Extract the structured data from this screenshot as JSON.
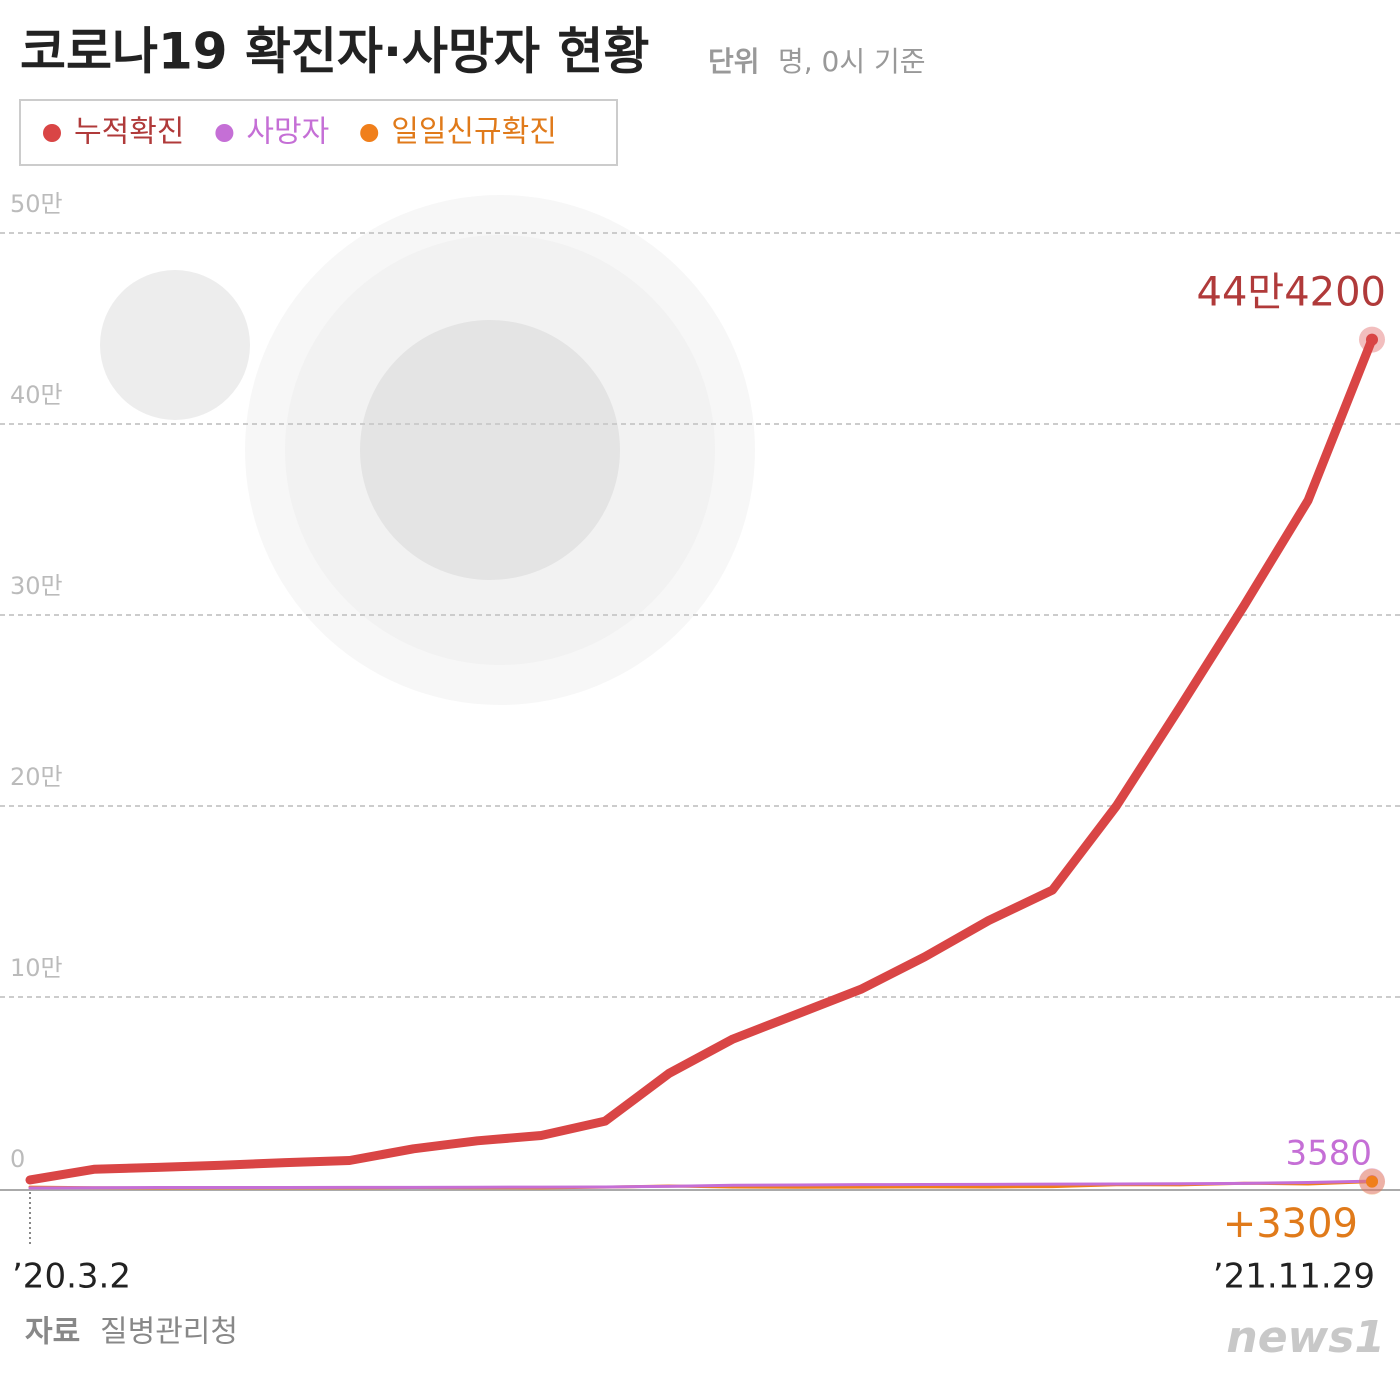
{
  "chart_data": {
    "type": "line",
    "title": "코로나19 확진자·사망자 현황",
    "unit_label": "단위",
    "unit": "명, 0시 기준",
    "source_label": "자료",
    "source": "질병관리청",
    "logo": "news1",
    "categories": [
      "’20.3.2",
      null,
      null,
      null,
      null,
      null,
      null,
      null,
      null,
      null,
      null,
      null,
      null,
      null,
      null,
      null,
      null,
      null,
      null,
      null,
      null,
      "’21.11.29"
    ],
    "series": [
      {
        "name": "누적확진",
        "color": "#d94545",
        "label_color": "#b03a3a",
        "values": [
          4212,
          9800,
          10800,
          11900,
          13300,
          14400,
          20500,
          24700,
          27500,
          35000,
          60000,
          78000,
          91000,
          104000,
          121000,
          140000,
          156000,
          200000,
          252000,
          305000,
          360000,
          444200
        ],
        "value_labels": [
          null,
          null,
          null,
          null,
          null,
          null,
          null,
          null,
          null,
          null,
          null,
          null,
          null,
          null,
          null,
          null,
          null,
          null,
          null,
          null,
          null,
          "44만4200"
        ]
      },
      {
        "name": "사망자",
        "color": "#c56fd6",
        "label_color": "#c56fd6",
        "values": [
          28,
          162,
          256,
          282,
          289,
          301,
          324,
          415,
          463,
          556,
          879,
          1420,
          1601,
          1735,
          1801,
          1882,
          2028,
          2097,
          2210,
          2433,
          2858,
          3580
        ]
      },
      {
        "name": "일일신규확진",
        "color": "#f07f1b",
        "label_color": "#e07a1a",
        "values": [
          476,
          101,
          27,
          38,
          48,
          63,
          248,
          119,
          77,
          451,
          1029,
          537,
          370,
          458,
          587,
          545,
          746,
          1708,
          1619,
          2486,
          2115,
          3309
        ],
        "value_labels": [
          null,
          null,
          null,
          null,
          null,
          null,
          null,
          null,
          null,
          null,
          null,
          null,
          null,
          null,
          null,
          null,
          null,
          null,
          null,
          null,
          null,
          "+3309"
        ]
      }
    ],
    "ylim": [
      0,
      500000
    ],
    "yticks": [
      0,
      {
        "value": 100000,
        "label": "10만"
      },
      {
        "value": 200000,
        "label": "20만"
      },
      {
        "value": 300000,
        "label": "30만"
      },
      {
        "value": 400000,
        "label": "40만"
      },
      {
        "value": 500000,
        "label": "50만"
      }
    ],
    "grid": true
  }
}
